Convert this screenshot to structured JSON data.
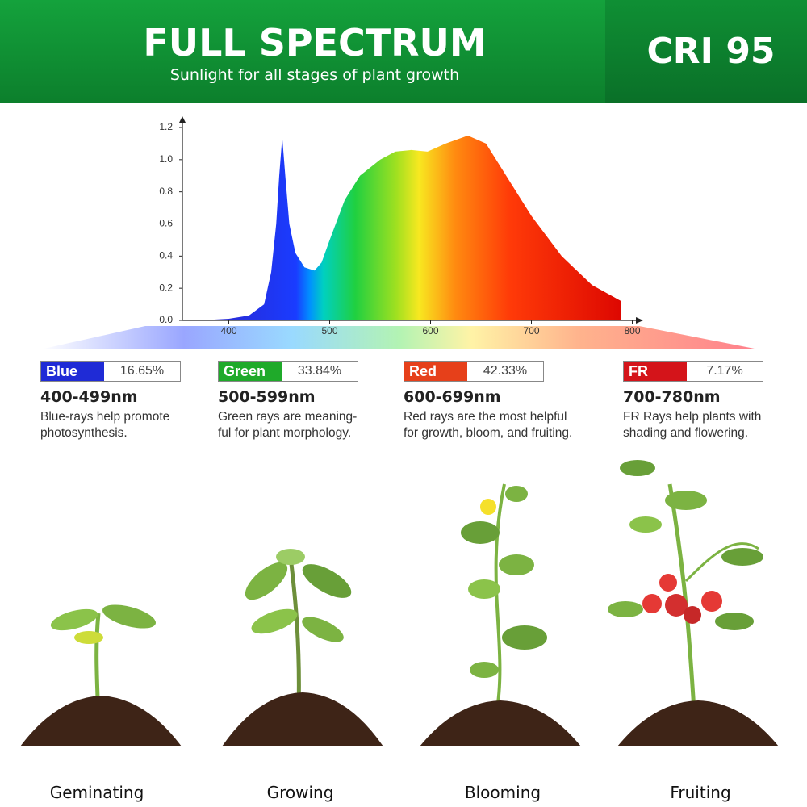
{
  "header": {
    "title": "FULL SPECTRUM",
    "subtitle": "Sunlight for all stages of plant growth",
    "badge": "CRI 95"
  },
  "chart_data": {
    "type": "area",
    "x": [
      370,
      400,
      420,
      435,
      442,
      447,
      450,
      453,
      456,
      460,
      466,
      475,
      485,
      492,
      500,
      515,
      530,
      550,
      565,
      581,
      597,
      615,
      637,
      655,
      675,
      700,
      730,
      760,
      789
    ],
    "values": [
      0,
      0.01,
      0.03,
      0.1,
      0.3,
      0.6,
      0.9,
      1.14,
      0.9,
      0.6,
      0.42,
      0.33,
      0.31,
      0.36,
      0.5,
      0.75,
      0.9,
      1.0,
      1.05,
      1.06,
      1.05,
      1.1,
      1.15,
      1.1,
      0.9,
      0.65,
      0.4,
      0.22,
      0.12
    ],
    "xlim": [
      354,
      805
    ],
    "ylim": [
      0,
      1.2
    ],
    "xticks": [
      400,
      500,
      600,
      700,
      800
    ],
    "yticks": [
      {
        "value": 0,
        "label": "0.0"
      },
      0.2,
      0.4,
      0.6,
      0.8,
      {
        "value": 1,
        "label": "1.0"
      },
      1.2
    ]
  },
  "bands": [
    {
      "name": "Blue",
      "share": "16.65%",
      "color": "#1f2bd6",
      "range": "400-499nm",
      "description": [
        "Blue-rays help promote",
        "photosynthesis."
      ]
    },
    {
      "name": "Green",
      "share": "33.84%",
      "color": "#1faa2a",
      "range": "500-599nm",
      "description": [
        "Green rays are meaning-",
        "ful for plant morphology."
      ]
    },
    {
      "name": "Red",
      "share": "42.33%",
      "color": "#e6401a",
      "range": "600-699nm",
      "description": [
        "Red rays are the most helpful",
        "for growth, bloom, and fruiting."
      ]
    },
    {
      "name": "FR",
      "share": "7.17%",
      "color": "#d4141a",
      "range": "700-780nm",
      "description": [
        "FR Rays help plants with",
        "shading and flowering."
      ]
    }
  ],
  "stages": [
    "Geminating",
    "Growing",
    "Blooming",
    "Fruiting"
  ]
}
